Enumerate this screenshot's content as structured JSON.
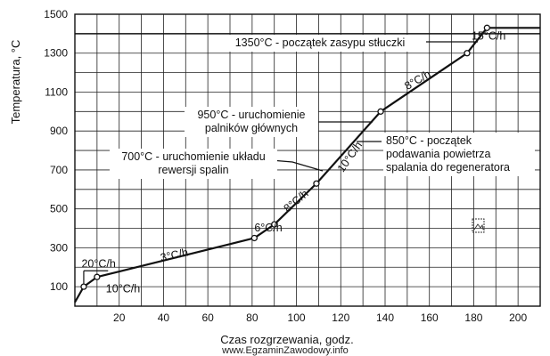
{
  "chart_data": {
    "type": "line",
    "xlabel": "Czas rozgrzewania, godz.",
    "ylabel": "Temperatura, °C",
    "xlim": [
      0,
      210
    ],
    "ylim": [
      0,
      1500
    ],
    "x_ticks": [
      20,
      40,
      60,
      80,
      100,
      120,
      140,
      160,
      180,
      200
    ],
    "y_ticks": [
      100,
      300,
      500,
      700,
      900,
      1100,
      1300,
      1500
    ],
    "grid": true,
    "series": [
      {
        "x": [
          0,
          4,
          10,
          81,
          90,
          109,
          138,
          177,
          186,
          210
        ],
        "y": [
          20,
          100,
          150,
          350,
          420,
          630,
          1000,
          1300,
          1430,
          1430
        ]
      }
    ],
    "rate_labels": [
      {
        "text": "20°C/h",
        "x": 3,
        "y": 200
      },
      {
        "text": "10°C/h",
        "x": 14,
        "y": 70
      },
      {
        "text": "3°C/h",
        "x": 39,
        "y": 230
      },
      {
        "text": "6°C/h",
        "x": 81,
        "y": 385
      },
      {
        "text": "8°C/h",
        "x": 96,
        "y": 480
      },
      {
        "text": "10°C/h",
        "x": 121,
        "y": 685
      },
      {
        "text": "8°C/h",
        "x": 150,
        "y": 1110
      },
      {
        "text": "15°C/h",
        "x": 179,
        "y": 1370
      }
    ],
    "annotations": [
      {
        "lines": [
          "1350°C - początek zasypu stłuczki"
        ]
      },
      {
        "lines": [
          "950°C - uruchomienie",
          "palników głównych"
        ]
      },
      {
        "lines": [
          "700°C - uruchomienie układu",
          "rewersji spalin"
        ]
      },
      {
        "lines": [
          "850°C - początek",
          "podawania  powietrza",
          "spalania do regeneratora"
        ]
      }
    ]
  },
  "watermark": "www.EgzaminZawodowy.info",
  "colors": {
    "line": "#111111",
    "grid": "#222222",
    "background": "#ffffff"
  }
}
